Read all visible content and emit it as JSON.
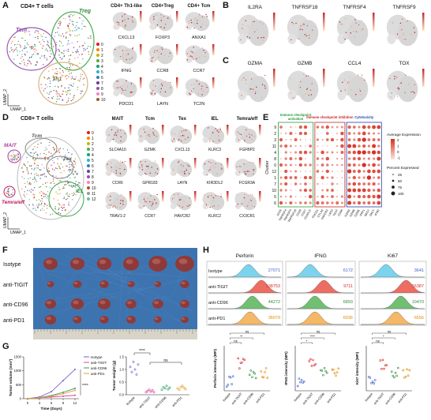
{
  "panels": {
    "A": {
      "label": "A",
      "title": "CD4+ T cells",
      "clusters": [
        "Tcm",
        "Treg",
        "Th1"
      ],
      "legend": [
        "0",
        "1",
        "2",
        "3",
        "4",
        "5",
        "6",
        "7",
        "8",
        "9",
        "10"
      ],
      "x_axis": "UMAP_1",
      "y_axis": "UMAP_2",
      "headers": [
        "CD4+ Th1-like",
        "CD4+Treg",
        "CD4+ Tcm"
      ],
      "genes": [
        [
          "CXCL13",
          "FOXP3",
          "ANXA1"
        ],
        [
          "IFNG",
          "CCR8",
          "CCR7"
        ],
        [
          "PDCD1",
          "LAYN",
          "TC2N"
        ]
      ]
    },
    "B": {
      "label": "B",
      "genes": [
        "IL2RA",
        "TNFRSF18",
        "TNFRSF4",
        "TNFRSF9"
      ]
    },
    "C": {
      "label": "C",
      "genes": [
        "GZMA",
        "GZMB",
        "CCL4",
        "TOX"
      ]
    },
    "D": {
      "label": "D",
      "title": "CD8+ T cells",
      "clusters": [
        "MAIT",
        "Tcm",
        "Tex",
        "IEL",
        "Temra/eff"
      ],
      "legend": [
        "0",
        "1",
        "2",
        "3",
        "4",
        "5",
        "6",
        "7",
        "8",
        "9",
        "10",
        "11",
        "12"
      ],
      "x_axis": "UMAP_1",
      "y_axis": "UMAP_2",
      "headers": [
        "MAIT",
        "Tcm",
        "Tex",
        "IEL",
        "Temra/eff"
      ],
      "genes": [
        [
          "SLC4A10",
          "GZMK",
          "CXCL13",
          "KLRC3",
          "FGFBP2"
        ],
        [
          "CCR6",
          "GPR183",
          "LAYN",
          "KIR3DL2",
          "FCGR3A"
        ],
        [
          "TRAV1-2",
          "CCR7",
          "HAVCR2",
          "KLRC2",
          "CX3CR1"
        ]
      ]
    },
    "E": {
      "label": "E",
      "y_axis": "Cluster",
      "clusters": [
        "9",
        "2",
        "3",
        "11",
        "4",
        "8",
        "0",
        "12",
        "1",
        "7",
        "10",
        "5",
        "6"
      ],
      "groups": [
        {
          "lines": [
            "Immune checkpoint",
            "activation"
          ],
          "genes": [
            "ICOS",
            "TNFRSF4",
            "TNFRSF9",
            "TNFRSF18",
            "CD28",
            "CD27",
            "CD40LG"
          ]
        },
        {
          "lines": [
            "Immune checkpoint inhibition"
          ],
          "genes": [
            "PDCD1",
            "CTLA4",
            "HAVCR2",
            "LAG3",
            "TIGIT",
            "CD96"
          ]
        },
        {
          "lines": [
            "Cytotoxicity"
          ],
          "genes": [
            "GZMA",
            "GZMB",
            "GZMK",
            "PRF1",
            "NKG7",
            "GNLY",
            "IFNG"
          ]
        }
      ],
      "color_legend": {
        "title": "Average Expression",
        "ticks": [
          2,
          1,
          0,
          -1
        ]
      },
      "size_legend": {
        "title": "Percent Expressed",
        "ticks": [
          25,
          50,
          75,
          100
        ]
      }
    },
    "F": {
      "label": "F",
      "groups": [
        "Isotype",
        "anti-TIGIT",
        "anti-CD96",
        "anti-PD1"
      ]
    },
    "G": {
      "label": "G"
    },
    "H": {
      "label": "H",
      "markers": [
        "Perforin",
        "IFNG",
        "Ki67"
      ],
      "groups": [
        "Isotype",
        "anti-TIGIT",
        "anti-CD96",
        "anti-PD1"
      ],
      "mfi": [
        [
          27071,
          138753,
          44272,
          36079
        ],
        [
          6172,
          9711,
          6893,
          6936
        ],
        [
          3641,
          16387,
          10470,
          6556
        ]
      ],
      "ylabels": [
        "Perforin intensity (MFI)",
        "IFNG intensity (MFI)",
        "Ki67 intensity (MFI)"
      ],
      "significance": [
        [
          "ns",
          "**",
          "ns"
        ],
        [
          "*",
          "****",
          "ns"
        ],
        [
          "ns",
          "*",
          "ns"
        ]
      ]
    }
  },
  "chart_data": [
    {
      "type": "line",
      "xlabel": "Time (Days)",
      "ylabel": "Tumor volume (mm³)",
      "x": [
        0,
        3,
        6,
        9,
        12
      ],
      "xlim": [
        -1,
        13
      ],
      "xticks": [
        0,
        3,
        6,
        9,
        12
      ],
      "ylim": [
        0,
        1500
      ],
      "yticks": [
        0,
        500,
        1000,
        1500
      ],
      "series": [
        {
          "name": "Isotype",
          "color": "#7a5fd0",
          "values": [
            0,
            60,
            250,
            650,
            1050
          ]
        },
        {
          "name": "anti-TIGIT",
          "color": "#e0409a",
          "values": [
            0,
            30,
            60,
            90,
            120
          ]
        },
        {
          "name": "anti-CD96",
          "color": "#2a9d5c",
          "values": [
            0,
            40,
            110,
            230,
            370
          ]
        },
        {
          "name": "anti-PD1",
          "color": "#e89a30",
          "values": [
            0,
            35,
            90,
            180,
            300
          ]
        }
      ],
      "annotations": [
        "****"
      ]
    },
    {
      "type": "strip",
      "ylabel": "Tumor weight (g)",
      "categories": [
        "Isotype",
        "anti-TIGIT",
        "anti-CD96",
        "anti-PD1"
      ],
      "colors": [
        "#7a5fd0",
        "#e0409a",
        "#2a9d5c",
        "#e89a30"
      ],
      "values": [
        [
          1.1,
          0.9,
          1.3,
          1.0,
          0.8,
          1.2
        ],
        [
          0.1,
          0.15,
          0.2,
          0.12,
          0.18,
          0.1
        ],
        [
          0.2,
          0.3,
          0.25,
          0.35,
          0.22,
          0.28
        ],
        [
          0.25,
          0.2,
          0.3,
          0.35,
          0.28,
          0.22
        ]
      ],
      "ylim": [
        0,
        1.5
      ],
      "yticks": [
        {
          "value": 0,
          "label": "0.0"
        },
        {
          "value": 0.5,
          "label": "0.5"
        },
        {
          "value": 1,
          "label": "1.0"
        },
        {
          "value": 1.5,
          "label": "1.5"
        }
      ],
      "annotations": [
        "****",
        "ns"
      ]
    }
  ]
}
